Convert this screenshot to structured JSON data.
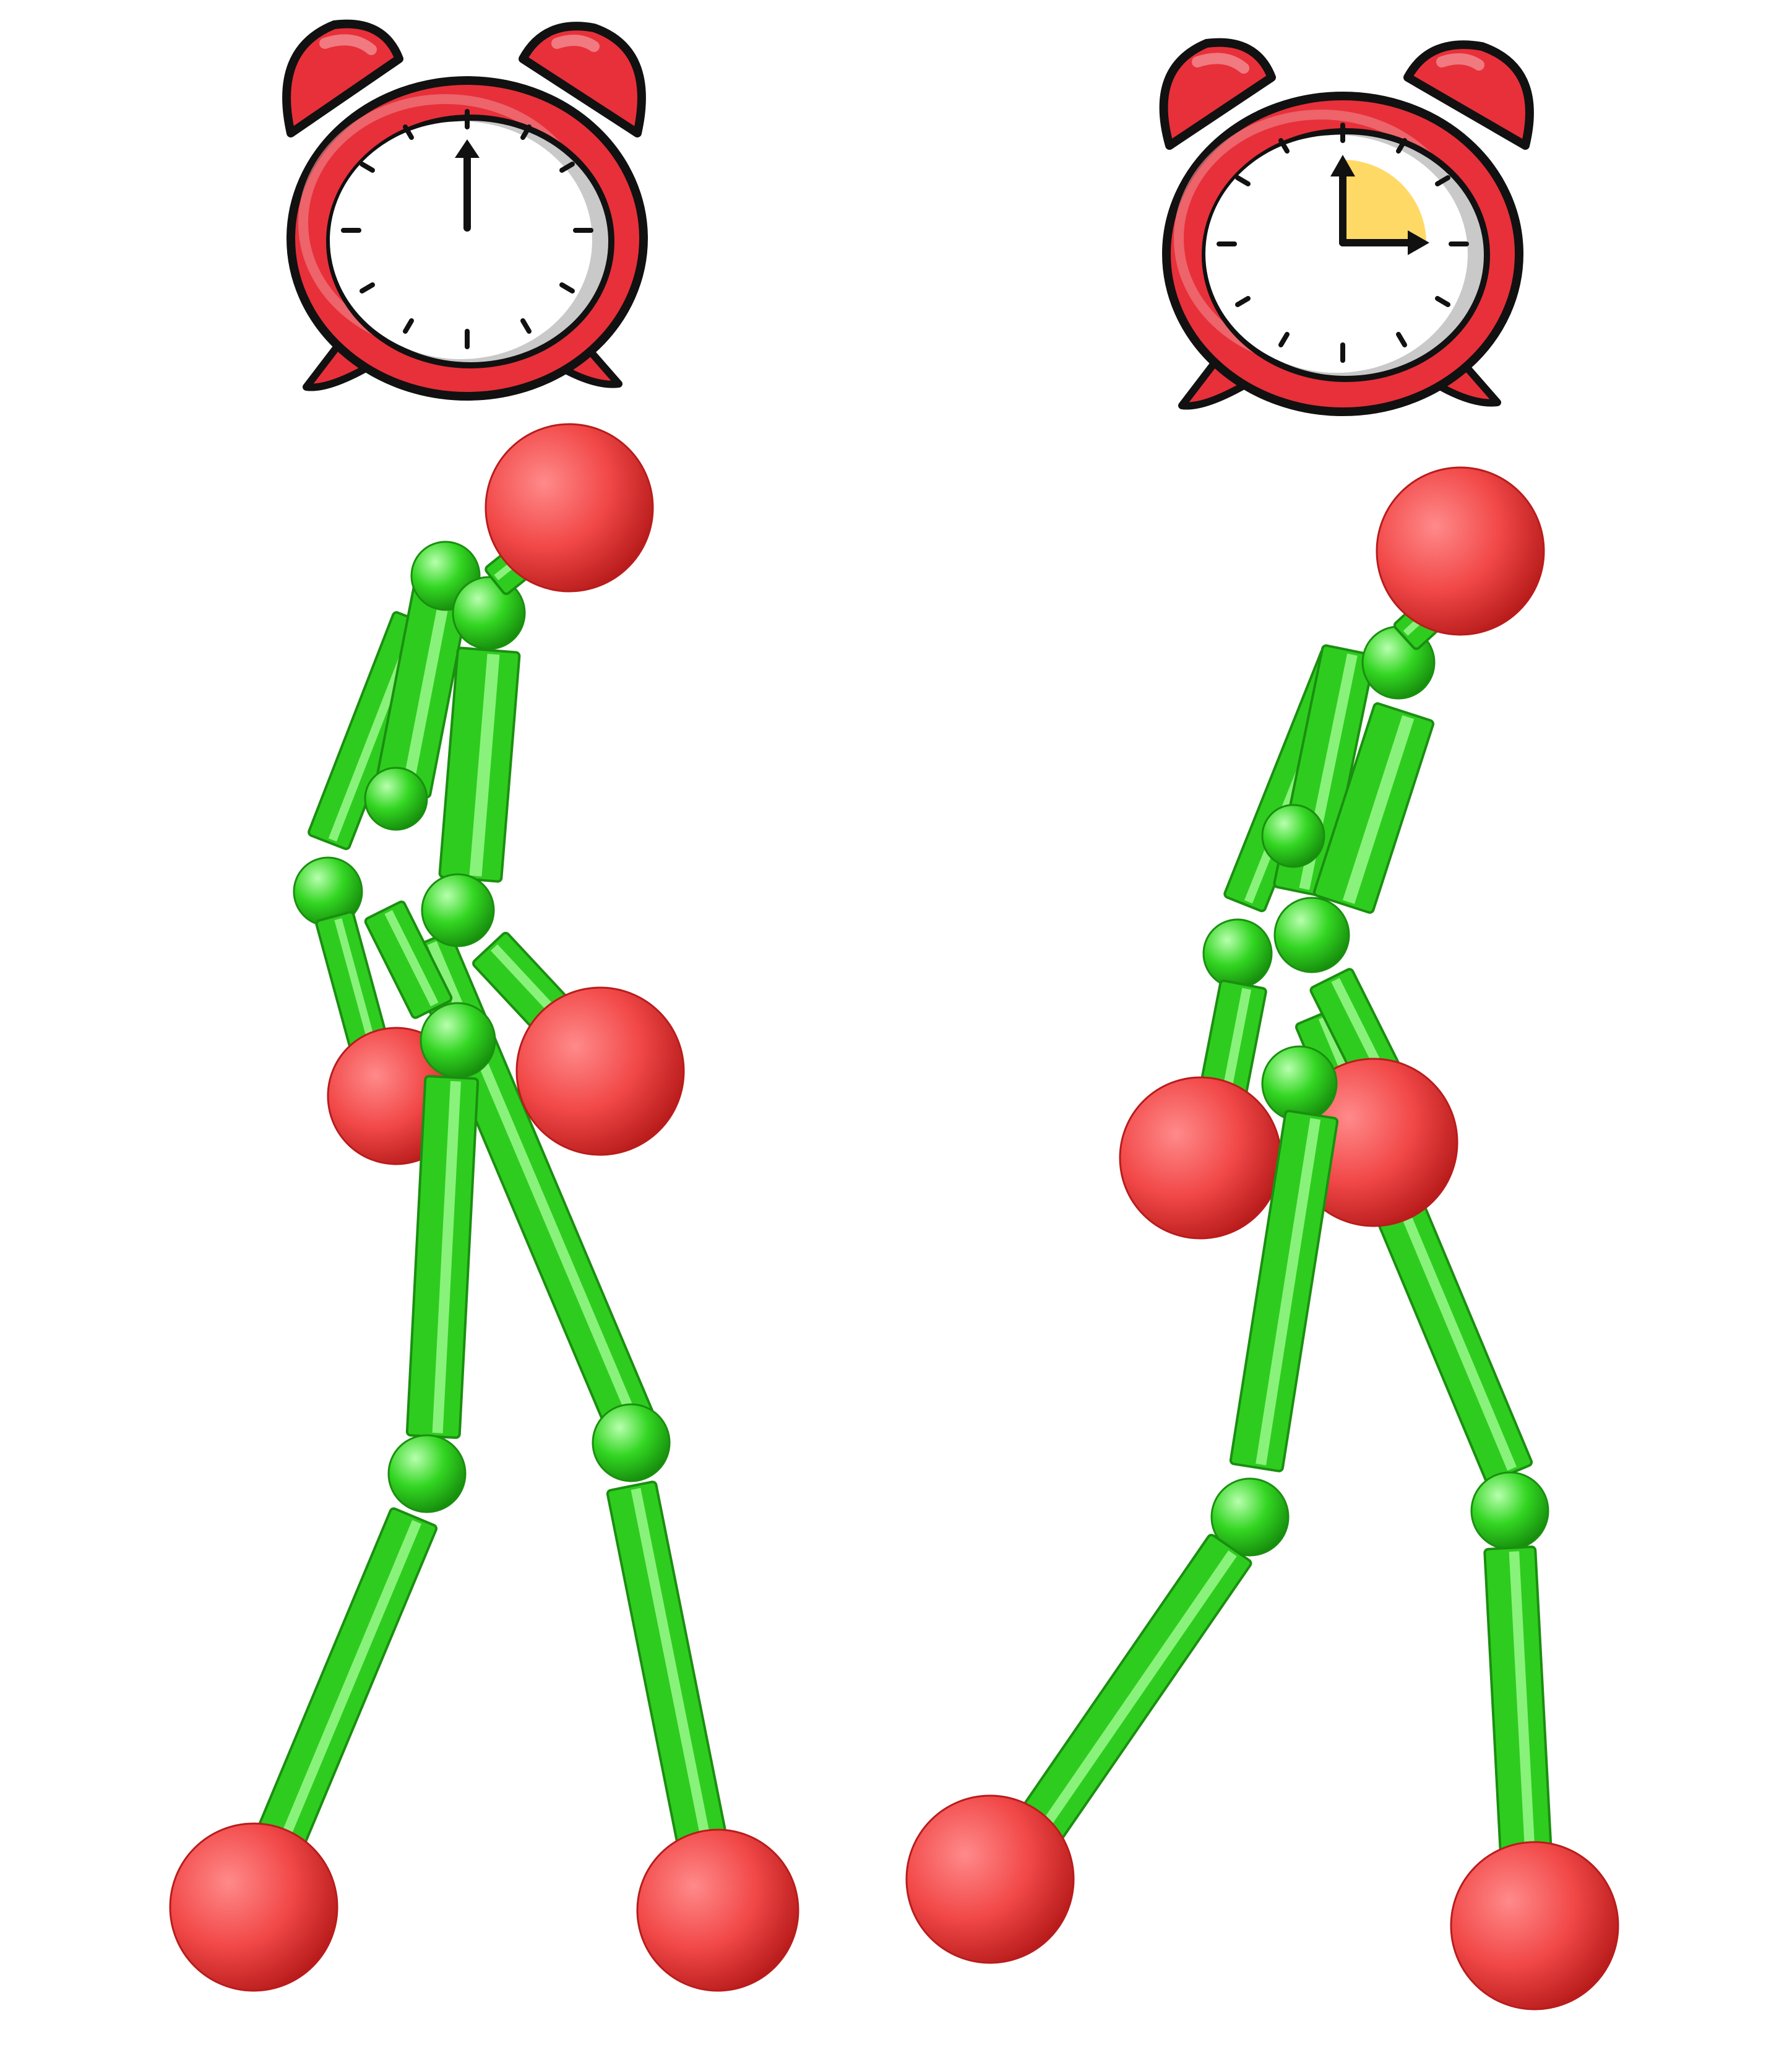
{
  "colors": {
    "background": "#ffffff",
    "clock_body": "#e8303a",
    "clock_body_light": "#f07a80",
    "clock_face": "#ffffff",
    "clock_shadow": "#c9c9c9",
    "clock_outline": "#111111",
    "elapsed_sector": "#ffd966",
    "limb_green": "#2ecc1f",
    "limb_green_dark": "#1a8f10",
    "limb_green_light": "#a8ff9a",
    "joint_red": "#f24848",
    "joint_red_dark": "#b91c1c",
    "joint_red_light": "#ff8a8a"
  },
  "panels": [
    {
      "clock": {
        "icon": "alarm-clock-icon",
        "minutes_elapsed": 0,
        "hand": "pointing-up"
      },
      "figure": {
        "icon": "stick-figure-walking-icon",
        "pose": "walk-start"
      }
    },
    {
      "clock": {
        "icon": "alarm-clock-icon",
        "minutes_elapsed": 15,
        "hand": "quarter-hour"
      },
      "figure": {
        "icon": "stick-figure-walking-icon",
        "pose": "walk-later"
      }
    }
  ]
}
